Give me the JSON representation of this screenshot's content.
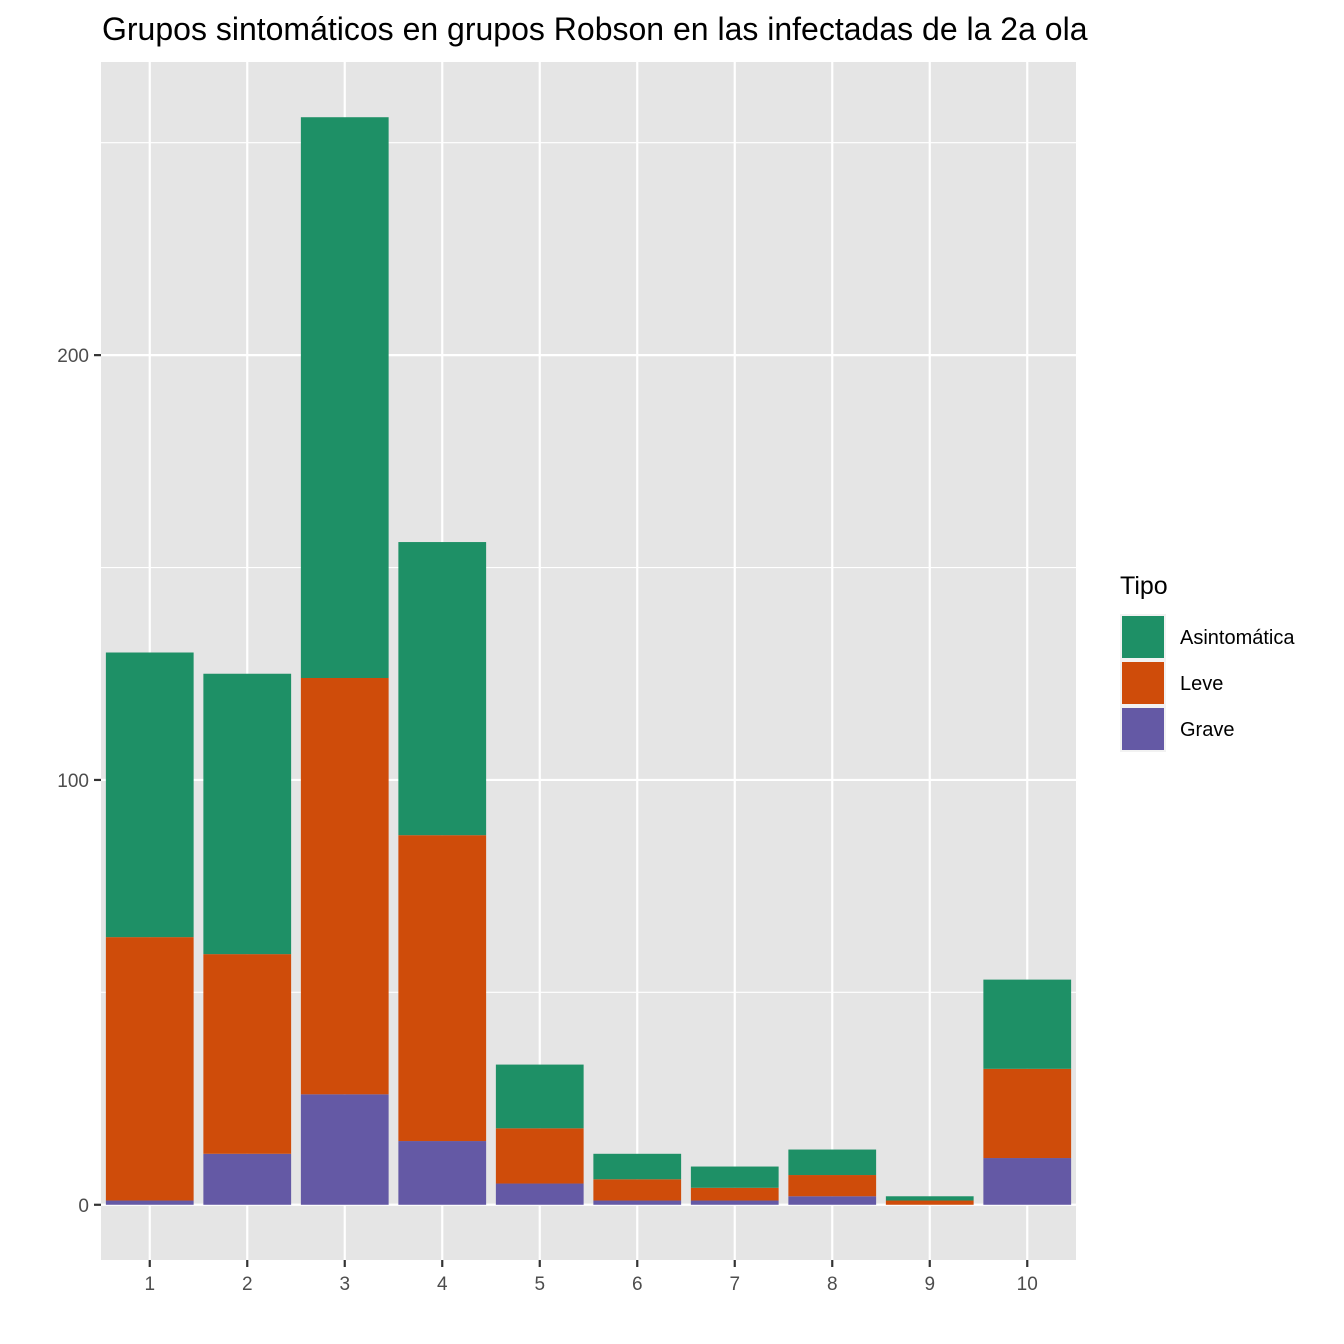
{
  "chart_data": {
    "type": "bar",
    "stacked": true,
    "title": "Grupos sintomáticos en grupos Robson en las infectadas de la 2a ola",
    "xlabel": "",
    "ylabel": "",
    "categories": [
      "1",
      "2",
      "3",
      "4",
      "5",
      "6",
      "7",
      "8",
      "9",
      "10"
    ],
    "series": [
      {
        "name": "Grave",
        "color": "#6459A5",
        "values": [
          1,
          12,
          26,
          15,
          5,
          1,
          1,
          2,
          0,
          11
        ]
      },
      {
        "name": "Leve",
        "color": "#CF4C0A",
        "values": [
          62,
          47,
          98,
          72,
          13,
          5,
          3,
          5,
          1,
          21
        ]
      },
      {
        "name": "Asintomática",
        "color": "#1E9066",
        "values": [
          67,
          66,
          132,
          69,
          15,
          6,
          5,
          6,
          1,
          21
        ]
      }
    ],
    "y_ticks": [
      0,
      100,
      200
    ],
    "ylim": [
      -13,
      269
    ],
    "grid": true,
    "legend": {
      "title": "Tipo",
      "position": "right",
      "order": [
        "Asintomática",
        "Leve",
        "Grave"
      ]
    },
    "colors": {
      "panel_background": "#E5E5E5",
      "grid_line": "#FFFFFF"
    }
  }
}
